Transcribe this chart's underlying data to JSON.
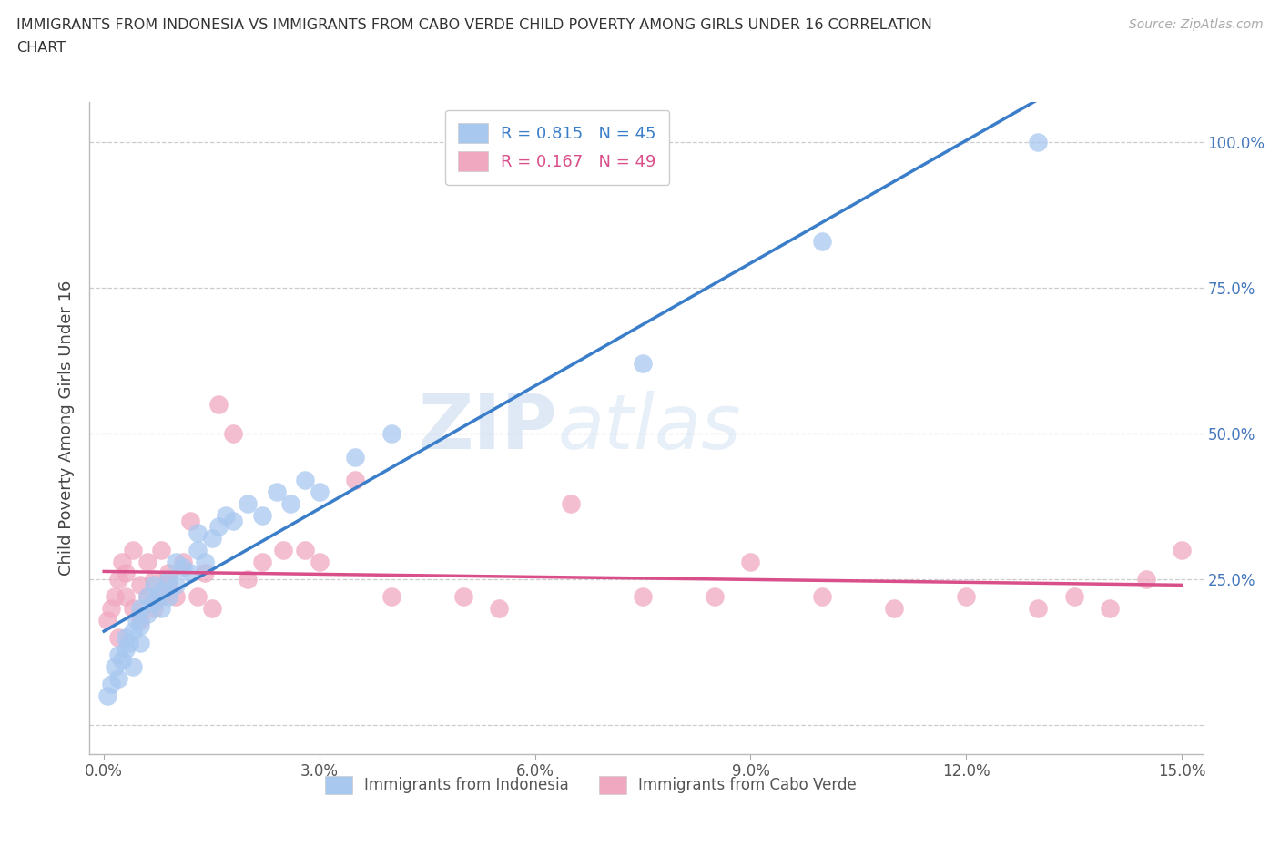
{
  "title_line1": "IMMIGRANTS FROM INDONESIA VS IMMIGRANTS FROM CABO VERDE CHILD POVERTY AMONG GIRLS UNDER 16 CORRELATION",
  "title_line2": "CHART",
  "source": "Source: ZipAtlas.com",
  "ylabel": "Child Poverty Among Girls Under 16",
  "xlim": [
    0.0,
    0.15
  ],
  "ylim": [
    0.0,
    1.05
  ],
  "xticks": [
    0.0,
    0.03,
    0.06,
    0.09,
    0.12,
    0.15
  ],
  "xtick_labels": [
    "0.0%",
    "3.0%",
    "6.0%",
    "9.0%",
    "12.0%",
    "15.0%"
  ],
  "yticks": [
    0.0,
    0.25,
    0.5,
    0.75,
    1.0
  ],
  "ytick_labels": [
    "",
    "25.0%",
    "50.0%",
    "75.0%",
    "100.0%"
  ],
  "watermark_1": "ZIP",
  "watermark_2": "atlas",
  "series1_color": "#a8c8f0",
  "series2_color": "#f0a8c0",
  "line1_color": "#3a7dc9",
  "line2_color": "#d94f8a",
  "legend_label1": "R = 0.815   N = 45",
  "legend_label2": "R = 0.167   N = 49",
  "legend_bottom_label1": "Immigrants from Indonesia",
  "legend_bottom_label2": "Immigrants from Cabo Verde",
  "indonesia_x": [
    0.0005,
    0.001,
    0.0015,
    0.002,
    0.002,
    0.0025,
    0.003,
    0.003,
    0.0035,
    0.004,
    0.004,
    0.0045,
    0.005,
    0.005,
    0.005,
    0.006,
    0.006,
    0.007,
    0.007,
    0.008,
    0.008,
    0.009,
    0.009,
    0.01,
    0.01,
    0.011,
    0.012,
    0.013,
    0.013,
    0.014,
    0.015,
    0.016,
    0.017,
    0.018,
    0.02,
    0.022,
    0.024,
    0.026,
    0.028,
    0.03,
    0.035,
    0.04,
    0.075,
    0.1,
    0.13
  ],
  "indonesia_y": [
    0.05,
    0.07,
    0.1,
    0.08,
    0.12,
    0.11,
    0.13,
    0.15,
    0.14,
    0.16,
    0.1,
    0.18,
    0.14,
    0.17,
    0.2,
    0.19,
    0.22,
    0.21,
    0.24,
    0.2,
    0.23,
    0.22,
    0.25,
    0.24,
    0.28,
    0.27,
    0.26,
    0.3,
    0.33,
    0.28,
    0.32,
    0.34,
    0.36,
    0.35,
    0.38,
    0.36,
    0.4,
    0.38,
    0.42,
    0.4,
    0.46,
    0.5,
    0.62,
    0.83,
    1.0
  ],
  "caboverde_x": [
    0.0005,
    0.001,
    0.0015,
    0.002,
    0.002,
    0.0025,
    0.003,
    0.003,
    0.004,
    0.004,
    0.005,
    0.005,
    0.006,
    0.006,
    0.007,
    0.007,
    0.008,
    0.008,
    0.009,
    0.009,
    0.01,
    0.011,
    0.012,
    0.013,
    0.014,
    0.015,
    0.016,
    0.018,
    0.02,
    0.022,
    0.025,
    0.028,
    0.03,
    0.035,
    0.04,
    0.05,
    0.055,
    0.065,
    0.075,
    0.085,
    0.09,
    0.1,
    0.11,
    0.12,
    0.13,
    0.135,
    0.14,
    0.145,
    0.15
  ],
  "caboverde_y": [
    0.18,
    0.2,
    0.22,
    0.25,
    0.15,
    0.28,
    0.22,
    0.26,
    0.2,
    0.3,
    0.18,
    0.24,
    0.22,
    0.28,
    0.2,
    0.25,
    0.3,
    0.22,
    0.26,
    0.24,
    0.22,
    0.28,
    0.35,
    0.22,
    0.26,
    0.2,
    0.55,
    0.5,
    0.25,
    0.28,
    0.3,
    0.3,
    0.28,
    0.42,
    0.22,
    0.22,
    0.2,
    0.38,
    0.22,
    0.22,
    0.28,
    0.22,
    0.2,
    0.22,
    0.2,
    0.22,
    0.2,
    0.25,
    0.3
  ]
}
